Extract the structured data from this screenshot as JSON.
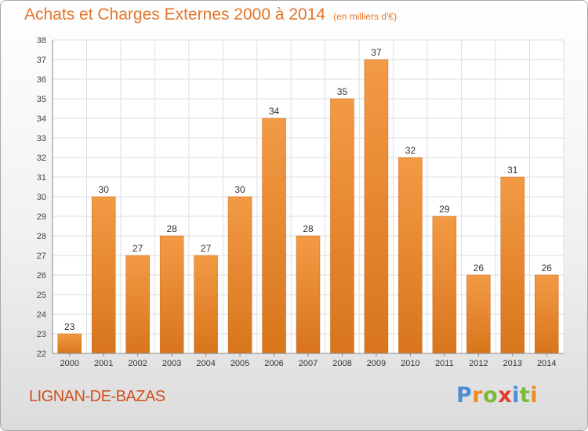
{
  "chart_data": {
    "type": "bar",
    "title": "Achats et Charges Externes 2000 à 2014",
    "unit_note": "(en milliers d'€)",
    "categories": [
      "2000",
      "2001",
      "2002",
      "2003",
      "2004",
      "2005",
      "2006",
      "2007",
      "2008",
      "2009",
      "2010",
      "2011",
      "2012",
      "2013",
      "2014"
    ],
    "values": [
      23,
      30,
      27,
      28,
      27,
      30,
      34,
      28,
      35,
      37,
      32,
      29,
      26,
      31,
      26
    ],
    "ylim": [
      22,
      38
    ],
    "yticks": [
      22,
      23,
      24,
      25,
      26,
      27,
      28,
      29,
      30,
      31,
      32,
      33,
      34,
      35,
      36,
      37,
      38
    ],
    "grid": true,
    "bar_color": "#f39a45",
    "bar_color_dark": "#d8751c",
    "data_labels": true
  },
  "commune": "LIGNAN-DE-BAZAS",
  "brand": {
    "letters": [
      "P",
      "r",
      "o",
      "x",
      "i",
      "t",
      "i"
    ],
    "colors": [
      "#4a8fd4",
      "#ef8a23",
      "#7cb83c",
      "#e23c2c",
      "#4a8fd4",
      "#7cb83c",
      "#ef8a23"
    ]
  },
  "colors": {
    "title": "#e2752a",
    "commune": "#d1501f"
  }
}
